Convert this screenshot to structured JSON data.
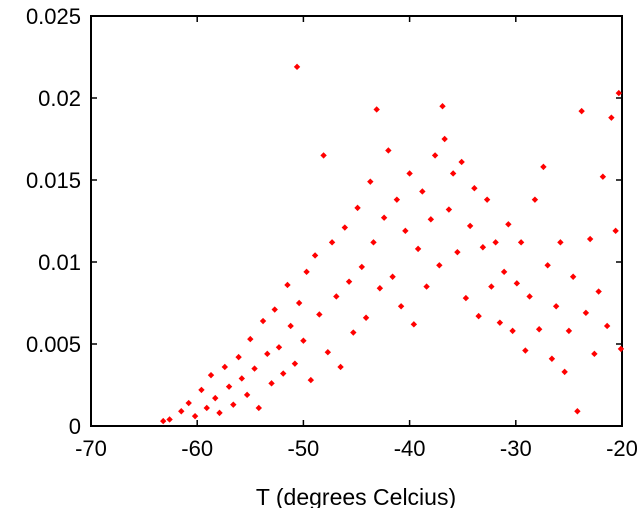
{
  "chart_data": {
    "type": "scatter",
    "title": "",
    "xlabel": "T (degrees Celcius)",
    "ylabel": "",
    "xlim": [
      -70,
      -20
    ],
    "ylim": [
      0,
      0.025
    ],
    "xticks": [
      -70,
      -60,
      -50,
      -40,
      -30,
      -20
    ],
    "xtick_labels": [
      "-70",
      "-60",
      "-50",
      "-40",
      "-30",
      "-20"
    ],
    "yticks": [
      0,
      0.005,
      0.01,
      0.015,
      0.02,
      0.025
    ],
    "ytick_labels": [
      "0",
      "0.005",
      "0.01",
      "0.015",
      "0.02",
      "0.025"
    ],
    "grid": false,
    "marker_color": "#ff0000",
    "series": [
      {
        "points": [
          [
            -63.2,
            0.0003
          ],
          [
            -62.6,
            0.0004
          ],
          [
            -61.5,
            0.0009
          ],
          [
            -60.8,
            0.0014
          ],
          [
            -60.2,
            0.0006
          ],
          [
            -59.6,
            0.0022
          ],
          [
            -59.1,
            0.0011
          ],
          [
            -58.7,
            0.0031
          ],
          [
            -58.3,
            0.0017
          ],
          [
            -57.9,
            0.0008
          ],
          [
            -57.4,
            0.0036
          ],
          [
            -57.0,
            0.0024
          ],
          [
            -56.6,
            0.0013
          ],
          [
            -56.1,
            0.0042
          ],
          [
            -55.8,
            0.0029
          ],
          [
            -55.3,
            0.0019
          ],
          [
            -55.0,
            0.0053
          ],
          [
            -54.6,
            0.0035
          ],
          [
            -54.2,
            0.0011
          ],
          [
            -53.8,
            0.0064
          ],
          [
            -53.4,
            0.0044
          ],
          [
            -53.0,
            0.0026
          ],
          [
            -52.7,
            0.0071
          ],
          [
            -52.3,
            0.0048
          ],
          [
            -51.9,
            0.0032
          ],
          [
            -51.5,
            0.0086
          ],
          [
            -51.2,
            0.0061
          ],
          [
            -50.8,
            0.0038
          ],
          [
            -50.6,
            0.0219
          ],
          [
            -50.4,
            0.0075
          ],
          [
            -50.0,
            0.0052
          ],
          [
            -49.7,
            0.0094
          ],
          [
            -49.3,
            0.0028
          ],
          [
            -48.9,
            0.0104
          ],
          [
            -48.5,
            0.0068
          ],
          [
            -48.1,
            0.0165
          ],
          [
            -47.7,
            0.0045
          ],
          [
            -47.3,
            0.0112
          ],
          [
            -46.9,
            0.0079
          ],
          [
            -46.5,
            0.0036
          ],
          [
            -46.1,
            0.0121
          ],
          [
            -45.7,
            0.0088
          ],
          [
            -45.3,
            0.0057
          ],
          [
            -44.9,
            0.0133
          ],
          [
            -44.5,
            0.0097
          ],
          [
            -44.1,
            0.0066
          ],
          [
            -43.7,
            0.0149
          ],
          [
            -43.4,
            0.0112
          ],
          [
            -43.1,
            0.0193
          ],
          [
            -42.8,
            0.0084
          ],
          [
            -42.4,
            0.0127
          ],
          [
            -42.0,
            0.0168
          ],
          [
            -41.6,
            0.0091
          ],
          [
            -41.2,
            0.0138
          ],
          [
            -40.8,
            0.0073
          ],
          [
            -40.4,
            0.0119
          ],
          [
            -40.0,
            0.0154
          ],
          [
            -39.6,
            0.0062
          ],
          [
            -39.2,
            0.0108
          ],
          [
            -38.8,
            0.0143
          ],
          [
            -38.4,
            0.0085
          ],
          [
            -38.0,
            0.0126
          ],
          [
            -37.6,
            0.0165
          ],
          [
            -37.2,
            0.0098
          ],
          [
            -36.9,
            0.0195
          ],
          [
            -36.7,
            0.0175
          ],
          [
            -36.3,
            0.0132
          ],
          [
            -35.9,
            0.0154
          ],
          [
            -35.5,
            0.0106
          ],
          [
            -35.1,
            0.0161
          ],
          [
            -34.7,
            0.0078
          ],
          [
            -34.3,
            0.0122
          ],
          [
            -33.9,
            0.0145
          ],
          [
            -33.5,
            0.0067
          ],
          [
            -33.1,
            0.0109
          ],
          [
            -32.7,
            0.0138
          ],
          [
            -32.3,
            0.0085
          ],
          [
            -31.9,
            0.0112
          ],
          [
            -31.5,
            0.0063
          ],
          [
            -31.1,
            0.0094
          ],
          [
            -30.7,
            0.0123
          ],
          [
            -30.3,
            0.0058
          ],
          [
            -29.9,
            0.0087
          ],
          [
            -29.5,
            0.0112
          ],
          [
            -29.1,
            0.0046
          ],
          [
            -28.7,
            0.0079
          ],
          [
            -28.2,
            0.0138
          ],
          [
            -27.8,
            0.0059
          ],
          [
            -27.4,
            0.0158
          ],
          [
            -27.0,
            0.0098
          ],
          [
            -26.6,
            0.0041
          ],
          [
            -26.2,
            0.0073
          ],
          [
            -25.8,
            0.0112
          ],
          [
            -25.4,
            0.0033
          ],
          [
            -25.0,
            0.0058
          ],
          [
            -24.6,
            0.0091
          ],
          [
            -24.2,
            0.0009
          ],
          [
            -23.8,
            0.0192
          ],
          [
            -23.4,
            0.0069
          ],
          [
            -23.0,
            0.0114
          ],
          [
            -22.6,
            0.0044
          ],
          [
            -22.2,
            0.0082
          ],
          [
            -21.8,
            0.0152
          ],
          [
            -21.4,
            0.0061
          ],
          [
            -21.0,
            0.0188
          ],
          [
            -20.6,
            0.0119
          ],
          [
            -20.3,
            0.0203
          ],
          [
            -20.1,
            0.0047
          ]
        ]
      }
    ]
  }
}
